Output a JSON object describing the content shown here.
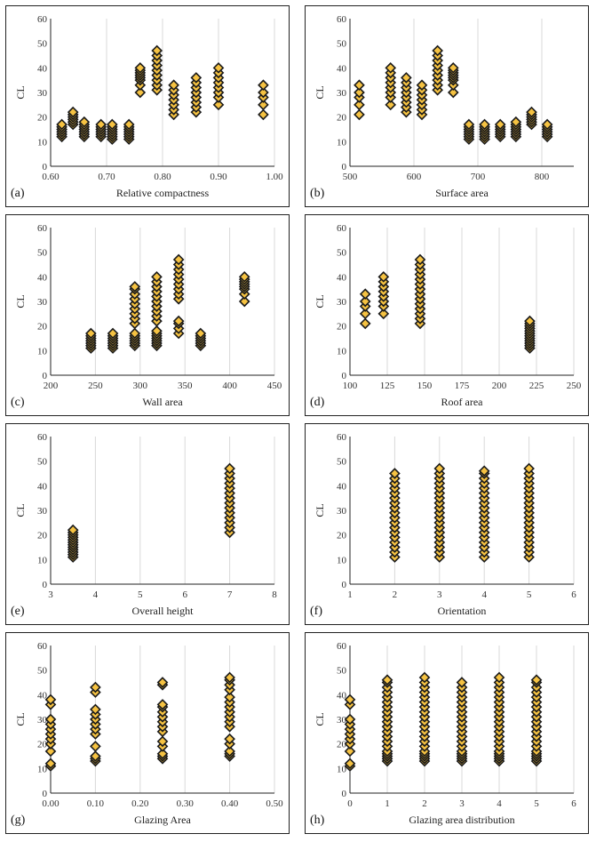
{
  "colors": {
    "marker_fill": "#f5c242",
    "marker_stroke": "#1a1a1a",
    "grid": "#d9d9d9",
    "axis": "#222222"
  },
  "chart_data": [
    {
      "type": "scatter",
      "panel": "(a)",
      "title": "",
      "xlabel": "Relative compactness",
      "ylabel": "CL",
      "xlim": [
        0.6,
        1.0
      ],
      "ylim": [
        0,
        60
      ],
      "xticks": [
        0.6,
        0.7,
        0.8,
        0.9,
        1.0
      ],
      "xtick_labels": [
        "0.60",
        "0.70",
        "0.80",
        "0.90",
        "1.00"
      ],
      "yticks": [
        0,
        10,
        20,
        30,
        40,
        50,
        60
      ],
      "ytick_labels": [
        "0",
        "10",
        "20",
        "30",
        "40",
        "50",
        "60"
      ],
      "points": [
        {
          "x": 0.62,
          "y": [
            12,
            13,
            14,
            15,
            16,
            17
          ]
        },
        {
          "x": 0.64,
          "y": [
            17,
            18,
            19,
            20,
            21,
            22
          ]
        },
        {
          "x": 0.66,
          "y": [
            12,
            13,
            14,
            15,
            16,
            17,
            18
          ]
        },
        {
          "x": 0.69,
          "y": [
            12,
            13,
            14,
            15,
            16,
            17
          ]
        },
        {
          "x": 0.71,
          "y": [
            11,
            12,
            13,
            14,
            15,
            16,
            17
          ]
        },
        {
          "x": 0.74,
          "y": [
            11,
            12,
            13,
            14,
            15,
            16,
            17
          ]
        },
        {
          "x": 0.76,
          "y": [
            30,
            33,
            35,
            36,
            37,
            38,
            39,
            40
          ]
        },
        {
          "x": 0.79,
          "y": [
            31,
            33,
            35,
            37,
            39,
            41,
            43,
            45,
            47
          ]
        },
        {
          "x": 0.82,
          "y": [
            21,
            23,
            25,
            27,
            29,
            31,
            33
          ]
        },
        {
          "x": 0.86,
          "y": [
            22,
            24,
            26,
            28,
            30,
            32,
            34,
            36
          ]
        },
        {
          "x": 0.9,
          "y": [
            25,
            28,
            30,
            32,
            34,
            36,
            38,
            40
          ]
        },
        {
          "x": 0.98,
          "y": [
            21,
            25,
            28,
            30,
            33
          ]
        }
      ]
    },
    {
      "type": "scatter",
      "panel": "(b)",
      "title": "",
      "xlabel": "Surface area",
      "ylabel": "CL",
      "xlim": [
        500,
        850
      ],
      "ylim": [
        0,
        60
      ],
      "xticks": [
        500,
        600,
        700,
        800
      ],
      "xtick_labels": [
        "500",
        "600",
        "700",
        "800"
      ],
      "yticks": [
        0,
        10,
        20,
        30,
        40,
        50,
        60
      ],
      "ytick_labels": [
        "0",
        "10",
        "20",
        "30",
        "40",
        "50",
        "60"
      ],
      "points": [
        {
          "x": 514.5,
          "y": [
            21,
            25,
            28,
            30,
            33
          ]
        },
        {
          "x": 563.5,
          "y": [
            25,
            28,
            30,
            32,
            34,
            36,
            38,
            40
          ]
        },
        {
          "x": 588,
          "y": [
            22,
            24,
            26,
            28,
            30,
            32,
            34,
            36
          ]
        },
        {
          "x": 612.5,
          "y": [
            21,
            23,
            25,
            27,
            29,
            31,
            33
          ]
        },
        {
          "x": 637,
          "y": [
            31,
            33,
            35,
            37,
            39,
            41,
            43,
            45,
            47
          ]
        },
        {
          "x": 661.5,
          "y": [
            30,
            33,
            35,
            36,
            37,
            38,
            39,
            40
          ]
        },
        {
          "x": 686,
          "y": [
            11,
            12,
            13,
            14,
            15,
            16,
            17
          ]
        },
        {
          "x": 710.5,
          "y": [
            11,
            12,
            13,
            14,
            15,
            16,
            17
          ]
        },
        {
          "x": 735,
          "y": [
            12,
            13,
            14,
            15,
            16,
            17
          ]
        },
        {
          "x": 759.5,
          "y": [
            12,
            13,
            14,
            15,
            16,
            17,
            18
          ]
        },
        {
          "x": 784,
          "y": [
            17,
            18,
            19,
            20,
            21,
            22
          ]
        },
        {
          "x": 808.5,
          "y": [
            12,
            13,
            14,
            15,
            16,
            17
          ]
        }
      ]
    },
    {
      "type": "scatter",
      "panel": "(c)",
      "title": "",
      "xlabel": "Wall area",
      "ylabel": "CL",
      "xlim": [
        200,
        450
      ],
      "ylim": [
        0,
        60
      ],
      "xticks": [
        200,
        250,
        300,
        350,
        400,
        450
      ],
      "xtick_labels": [
        "200",
        "250",
        "300",
        "350",
        "400",
        "450"
      ],
      "yticks": [
        0,
        10,
        20,
        30,
        40,
        50,
        60
      ],
      "ytick_labels": [
        "0",
        "10",
        "20",
        "30",
        "40",
        "50",
        "60"
      ],
      "points": [
        {
          "x": 245,
          "y": [
            11,
            12,
            13,
            14,
            15,
            16,
            17
          ]
        },
        {
          "x": 269.5,
          "y": [
            11,
            12,
            13,
            14,
            15,
            16,
            17
          ]
        },
        {
          "x": 294,
          "y": [
            12,
            13,
            14,
            15,
            16,
            17,
            21,
            23,
            25,
            27,
            29,
            31,
            33,
            35,
            36
          ]
        },
        {
          "x": 318.5,
          "y": [
            12,
            13,
            14,
            15,
            16,
            17,
            18,
            22,
            24,
            26,
            28,
            30,
            32,
            34,
            36,
            38,
            40
          ]
        },
        {
          "x": 343,
          "y": [
            17,
            19,
            21,
            22,
            31,
            33,
            35,
            37,
            39,
            41,
            43,
            45,
            47
          ]
        },
        {
          "x": 367.5,
          "y": [
            12,
            13,
            14,
            15,
            16,
            17
          ]
        },
        {
          "x": 416.5,
          "y": [
            30,
            33,
            35,
            36,
            37,
            38,
            39,
            40
          ]
        }
      ]
    },
    {
      "type": "scatter",
      "panel": "(d)",
      "title": "",
      "xlabel": "Roof area",
      "ylabel": "CL",
      "xlim": [
        100,
        250
      ],
      "ylim": [
        0,
        60
      ],
      "xticks": [
        100,
        125,
        150,
        175,
        200,
        225,
        250
      ],
      "xtick_labels": [
        "100",
        "125",
        "150",
        "175",
        "200",
        "225",
        "250"
      ],
      "yticks": [
        0,
        10,
        20,
        30,
        40,
        50,
        60
      ],
      "ytick_labels": [
        "0",
        "10",
        "20",
        "30",
        "40",
        "50",
        "60"
      ],
      "points": [
        {
          "x": 110.25,
          "y": [
            21,
            25,
            28,
            30,
            33
          ]
        },
        {
          "x": 122.5,
          "y": [
            25,
            28,
            30,
            32,
            34,
            36,
            38,
            40
          ]
        },
        {
          "x": 147,
          "y": [
            21,
            23,
            25,
            27,
            29,
            31,
            33,
            35,
            37,
            39,
            41,
            43,
            45,
            47
          ]
        },
        {
          "x": 220.5,
          "y": [
            11,
            12,
            13,
            14,
            15,
            16,
            17,
            18,
            19,
            20,
            21,
            22
          ]
        }
      ]
    },
    {
      "type": "scatter",
      "panel": "(e)",
      "title": "",
      "xlabel": "Overall height",
      "ylabel": "CL",
      "xlim": [
        3,
        8
      ],
      "ylim": [
        0,
        60
      ],
      "xticks": [
        3,
        4,
        5,
        6,
        7,
        8
      ],
      "xtick_labels": [
        "3",
        "4",
        "5",
        "6",
        "7",
        "8"
      ],
      "yticks": [
        0,
        10,
        20,
        30,
        40,
        50,
        60
      ],
      "ytick_labels": [
        "0",
        "10",
        "20",
        "30",
        "40",
        "50",
        "60"
      ],
      "points": [
        {
          "x": 3.5,
          "y": [
            11,
            12,
            13,
            14,
            15,
            16,
            17,
            18,
            19,
            20,
            21,
            22
          ]
        },
        {
          "x": 7,
          "y": [
            21,
            23,
            25,
            27,
            29,
            31,
            33,
            35,
            37,
            39,
            41,
            43,
            45,
            47
          ]
        }
      ]
    },
    {
      "type": "scatter",
      "panel": "(f)",
      "title": "",
      "xlabel": "Orientation",
      "ylabel": "CL",
      "xlim": [
        1,
        6
      ],
      "ylim": [
        0,
        60
      ],
      "xticks": [
        1,
        2,
        3,
        4,
        5,
        6
      ],
      "xtick_labels": [
        "1",
        "2",
        "3",
        "4",
        "5",
        "6"
      ],
      "yticks": [
        0,
        10,
        20,
        30,
        40,
        50,
        60
      ],
      "ytick_labels": [
        "0",
        "10",
        "20",
        "30",
        "40",
        "50",
        "60"
      ],
      "points": [
        {
          "x": 2,
          "y": [
            11,
            13,
            15,
            17,
            19,
            21,
            23,
            25,
            27,
            29,
            31,
            33,
            35,
            37,
            39,
            41,
            43,
            45
          ]
        },
        {
          "x": 3,
          "y": [
            11,
            13,
            15,
            17,
            19,
            21,
            23,
            25,
            27,
            29,
            31,
            33,
            35,
            37,
            39,
            41,
            43,
            45,
            47
          ]
        },
        {
          "x": 4,
          "y": [
            11,
            13,
            15,
            17,
            19,
            21,
            23,
            25,
            27,
            29,
            31,
            33,
            35,
            37,
            39,
            41,
            43,
            45,
            46
          ]
        },
        {
          "x": 5,
          "y": [
            11,
            13,
            15,
            17,
            19,
            21,
            23,
            25,
            27,
            29,
            31,
            33,
            35,
            37,
            39,
            41,
            43,
            45,
            47
          ]
        }
      ]
    },
    {
      "type": "scatter",
      "panel": "(g)",
      "title": "",
      "xlabel": "Glazing Area",
      "ylabel": "CL",
      "xlim": [
        0,
        0.5
      ],
      "ylim": [
        0,
        60
      ],
      "xticks": [
        0,
        0.1,
        0.2,
        0.3,
        0.4,
        0.5
      ],
      "xtick_labels": [
        "0.00",
        "0.10",
        "0.20",
        "0.30",
        "0.40",
        "0.50"
      ],
      "yticks": [
        0,
        10,
        20,
        30,
        40,
        50,
        60
      ],
      "ytick_labels": [
        "0",
        "10",
        "20",
        "30",
        "40",
        "50",
        "60"
      ],
      "points": [
        {
          "x": 0,
          "y": [
            11,
            12,
            17,
            20,
            22,
            24,
            26,
            28,
            30,
            36,
            38
          ]
        },
        {
          "x": 0.1,
          "y": [
            13,
            14,
            15,
            19,
            24,
            26,
            28,
            30,
            32,
            34,
            41,
            43
          ]
        },
        {
          "x": 0.25,
          "y": [
            14,
            15,
            16,
            19,
            21,
            25,
            27,
            29,
            31,
            33,
            35,
            36,
            44,
            45
          ]
        },
        {
          "x": 0.4,
          "y": [
            15,
            16,
            17,
            20,
            22,
            27,
            29,
            31,
            33,
            35,
            37,
            39,
            42,
            44,
            46,
            47
          ]
        }
      ]
    },
    {
      "type": "scatter",
      "panel": "(h)",
      "title": "",
      "xlabel": "Glazing area distribution",
      "ylabel": "CL",
      "xlim": [
        0,
        6
      ],
      "ylim": [
        0,
        60
      ],
      "xticks": [
        0,
        1,
        2,
        3,
        4,
        5,
        6
      ],
      "xtick_labels": [
        "0",
        "1",
        "2",
        "3",
        "4",
        "5",
        "6"
      ],
      "yticks": [
        0,
        10,
        20,
        30,
        40,
        50,
        60
      ],
      "ytick_labels": [
        "0",
        "10",
        "20",
        "30",
        "40",
        "50",
        "60"
      ],
      "points": [
        {
          "x": 0,
          "y": [
            11,
            12,
            17,
            20,
            22,
            24,
            26,
            28,
            30,
            36,
            38
          ]
        },
        {
          "x": 1,
          "y": [
            13,
            14,
            15,
            16,
            17,
            19,
            21,
            23,
            25,
            27,
            29,
            31,
            33,
            35,
            37,
            39,
            41,
            43,
            45,
            46
          ]
        },
        {
          "x": 2,
          "y": [
            13,
            14,
            15,
            16,
            17,
            19,
            21,
            23,
            25,
            27,
            29,
            31,
            33,
            35,
            37,
            39,
            41,
            43,
            45,
            47
          ]
        },
        {
          "x": 3,
          "y": [
            13,
            14,
            15,
            16,
            17,
            19,
            21,
            23,
            25,
            27,
            29,
            31,
            33,
            35,
            37,
            39,
            41,
            43,
            45
          ]
        },
        {
          "x": 4,
          "y": [
            13,
            14,
            15,
            16,
            17,
            19,
            21,
            23,
            25,
            27,
            29,
            31,
            33,
            35,
            37,
            39,
            41,
            43,
            45,
            47
          ]
        },
        {
          "x": 5,
          "y": [
            13,
            14,
            15,
            16,
            17,
            19,
            21,
            23,
            25,
            27,
            29,
            31,
            33,
            35,
            37,
            39,
            41,
            43,
            45,
            46
          ]
        }
      ]
    }
  ]
}
